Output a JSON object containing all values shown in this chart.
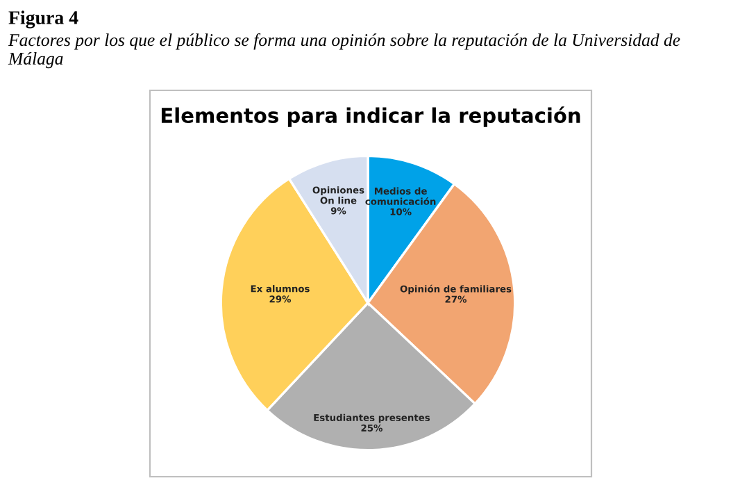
{
  "chart_data": {
    "type": "pie",
    "title": "Elementos para indicar la reputación",
    "categories": [
      "Medios de\ncomunicación",
      "Opinión de familiares",
      "Estudiantes presentes",
      "Ex alumnos",
      "Opiniones\nOn line"
    ],
    "values": [
      10,
      27,
      25,
      29,
      9
    ],
    "value_labels": [
      "10%",
      "27%",
      "25%",
      "29%",
      "9%"
    ],
    "colors": [
      "#00a2e8",
      "#f2a571",
      "#b0b0b0",
      "#ffd05a",
      "#d6dff0"
    ],
    "annotations": [
      "Figura 4",
      "Factores por los que el público se forma una opinión sobre la reputación de la Universidad de Málaga"
    ]
  }
}
